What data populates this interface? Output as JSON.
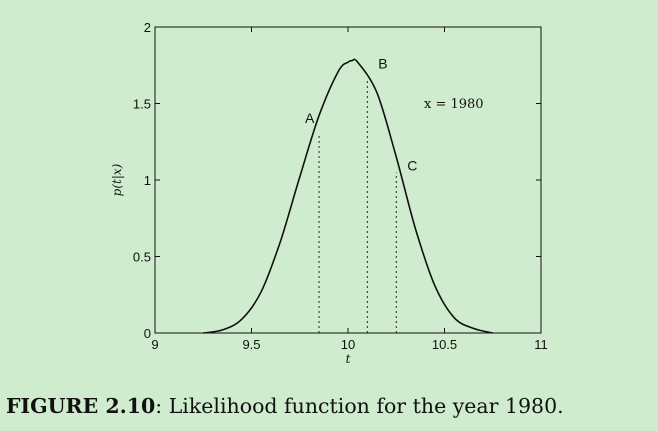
{
  "chart_data": {
    "type": "line",
    "xlabel": "t",
    "ylabel": "p(t|x)",
    "xlim": [
      9,
      11
    ],
    "ylim": [
      0,
      2
    ],
    "x_ticks": [
      "9",
      "9.5",
      "10",
      "10.5",
      "11"
    ],
    "y_ticks": [
      "0",
      "0.5",
      "1",
      "1.5",
      "2"
    ],
    "series": [
      {
        "x": [
          9.25,
          9.35,
          9.45,
          9.55,
          9.65,
          9.75,
          9.85,
          9.95,
          10.0,
          10.02,
          10.05,
          10.15,
          10.25,
          10.35,
          10.45,
          10.55,
          10.65,
          10.75
        ],
        "y": [
          0.0,
          0.02,
          0.09,
          0.27,
          0.6,
          1.02,
          1.42,
          1.71,
          1.77,
          1.78,
          1.77,
          1.57,
          1.15,
          0.68,
          0.31,
          0.1,
          0.03,
          0.0
        ]
      }
    ],
    "markers": [
      {
        "label": "A",
        "x": 9.85,
        "y": 1.3
      },
      {
        "label": "B",
        "x": 10.1,
        "y": 1.65
      },
      {
        "label": "C",
        "x": 10.25,
        "y": 1.05
      }
    ],
    "annotation": "x = 1980",
    "grid": false
  },
  "caption": {
    "label": "FIGURE 2.10",
    "text": ": Likelihood function for the year 1980."
  }
}
